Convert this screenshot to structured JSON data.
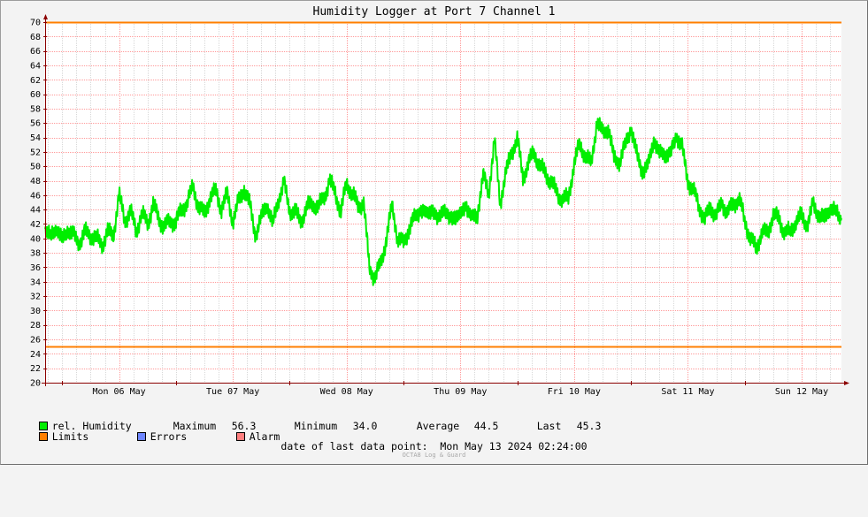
{
  "title": "Humidity Logger at Port 7 Channel 1",
  "colors": {
    "series": "#00ee00",
    "limits": "#ff7f00",
    "errors": "#6e86ff",
    "alarm": "#ff7f7f",
    "grid_major": "#ff9a9a",
    "grid_minor": "#d8d8d8",
    "background": "#ffffff",
    "axis": "#8b0000"
  },
  "legend": {
    "series_label": "rel. Humidity",
    "maximum_label": "Maximum",
    "maximum_value": "56.3",
    "minimum_label": "Minimum",
    "minimum_value": "34.0",
    "average_label": "Average",
    "average_value": "44.5",
    "last_label": "Last",
    "last_value": "45.3",
    "limits_label": "Limits",
    "errors_label": "Errors",
    "alarm_label": "Alarm"
  },
  "footer": {
    "label": "date of last data point:",
    "value": "Mon May 13 2024 02:24:00",
    "watermark": "OCTA8 Log & Guard"
  },
  "chart_data": {
    "type": "line",
    "title": "Humidity Logger at Port 7 Channel 1",
    "xlabel": "",
    "ylabel": "",
    "categories": [
      "Mon 06 May",
      "Tue 07 May",
      "Wed 08 May",
      "Thu 09 May",
      "Fri 10 May",
      "Sat 11 May",
      "Sun 12 May"
    ],
    "ylim": [
      20,
      70
    ],
    "y_ticks": [
      20,
      22,
      24,
      26,
      28,
      30,
      32,
      34,
      36,
      38,
      40,
      42,
      44,
      46,
      48,
      50,
      52,
      54,
      56,
      58,
      60,
      62,
      64,
      66,
      68,
      70
    ],
    "xlim_days": [
      5.85,
      12.85
    ],
    "grid": true,
    "limits": [
      70,
      25
    ],
    "series": [
      {
        "name": "rel. Humidity",
        "x": [
          5.85,
          5.9,
          5.95,
          6.0,
          6.05,
          6.1,
          6.15,
          6.2,
          6.25,
          6.3,
          6.35,
          6.4,
          6.45,
          6.5,
          6.55,
          6.6,
          6.65,
          6.7,
          6.75,
          6.8,
          6.85,
          6.9,
          6.95,
          7.0,
          7.05,
          7.1,
          7.15,
          7.2,
          7.25,
          7.3,
          7.35,
          7.4,
          7.45,
          7.5,
          7.55,
          7.6,
          7.65,
          7.7,
          7.75,
          7.8,
          7.85,
          7.9,
          7.95,
          8.0,
          8.05,
          8.1,
          8.15,
          8.2,
          8.25,
          8.3,
          8.35,
          8.4,
          8.45,
          8.5,
          8.55,
          8.6,
          8.65,
          8.7,
          8.75,
          8.8,
          8.85,
          8.9,
          8.95,
          9.0,
          9.05,
          9.1,
          9.15,
          9.2,
          9.25,
          9.3,
          9.35,
          9.4,
          9.45,
          9.5,
          9.55,
          9.6,
          9.65,
          9.7,
          9.75,
          9.8,
          9.85,
          9.9,
          9.95,
          10.0,
          10.05,
          10.1,
          10.15,
          10.2,
          10.25,
          10.3,
          10.35,
          10.4,
          10.45,
          10.5,
          10.55,
          10.6,
          10.65,
          10.7,
          10.75,
          10.8,
          10.85,
          10.9,
          10.95,
          11.0,
          11.05,
          11.1,
          11.15,
          11.2,
          11.25,
          11.3,
          11.35,
          11.4,
          11.45,
          11.5,
          11.55,
          11.6,
          11.65,
          11.7,
          11.75,
          11.8,
          11.85,
          11.9,
          11.95,
          12.0,
          12.05,
          12.1,
          12.15,
          12.2,
          12.25,
          12.3,
          12.35,
          12.4,
          12.45,
          12.5,
          12.55,
          12.6,
          12.65,
          12.7,
          12.75,
          12.8,
          12.85
        ],
        "values": [
          41.5,
          40.0,
          41.8,
          39.5,
          41.5,
          40.2,
          39.5,
          40.8,
          40.5,
          40.0,
          39.2,
          40.8,
          40.5,
          46.0,
          42.5,
          43.8,
          41.0,
          43.5,
          42.0,
          44.8,
          42.5,
          41.8,
          42.2,
          42.5,
          43.8,
          45.2,
          47.0,
          44.5,
          43.2,
          45.8,
          46.5,
          44.2,
          46.0,
          42.5,
          45.0,
          47.0,
          44.5,
          40.5,
          42.8,
          45.0,
          41.8,
          45.5,
          47.5,
          44.0,
          43.5,
          42.5,
          44.2,
          45.0,
          44.2,
          45.8,
          47.8,
          46.5,
          43.5,
          47.8,
          46.2,
          44.5,
          45.0,
          36.0,
          34.5,
          36.5,
          40.0,
          44.5,
          40.0,
          39.2,
          41.5,
          42.8,
          44.2,
          43.0,
          44.5,
          42.0,
          44.8,
          42.2,
          43.5,
          42.8,
          45.0,
          42.5,
          43.5,
          48.5,
          46.5,
          53.5,
          45.0,
          49.0,
          52.0,
          53.8,
          48.5,
          50.5,
          52.0,
          50.0,
          49.0,
          47.8,
          46.2,
          45.5,
          45.5,
          50.5,
          53.0,
          51.5,
          50.2,
          56.3,
          54.5,
          55.5,
          51.0,
          50.8,
          52.8,
          55.5,
          51.5,
          49.5,
          49.8,
          54.0,
          51.5,
          52.0,
          51.5,
          54.5,
          52.5,
          48.0,
          46.5,
          44.5,
          42.5,
          44.5,
          43.0,
          45.0,
          43.5,
          44.8,
          45.5,
          42.5,
          40.0,
          38.5,
          41.0,
          40.5,
          43.5,
          42.5,
          41.0,
          40.8,
          42.5,
          43.0,
          42.0,
          44.5,
          43.5,
          42.5,
          44.5,
          43.5,
          42.8
        ]
      }
    ]
  }
}
